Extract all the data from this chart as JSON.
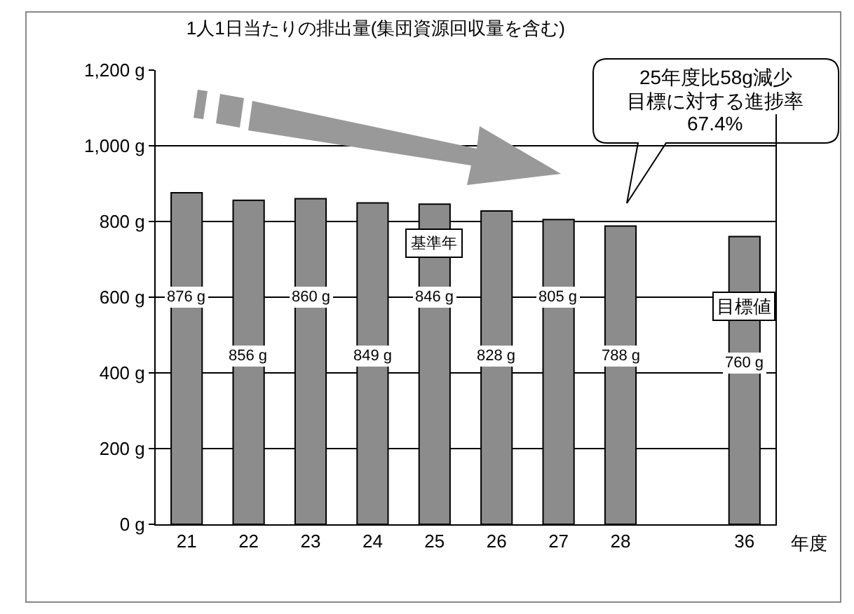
{
  "chart_data": {
    "type": "bar",
    "title": "1人1日当たりの排出量(集団資源回収量を含む)",
    "xlabel": "年度",
    "categories": [
      "21",
      "22",
      "23",
      "24",
      "25",
      "26",
      "27",
      "28",
      null,
      "36"
    ],
    "values": [
      876,
      856,
      860,
      849,
      846,
      828,
      805,
      788,
      null,
      760
    ],
    "value_labels": [
      "876 g",
      "856 g",
      "860 g",
      "849 g",
      "846 g",
      "828 g",
      "805 g",
      "788 g",
      null,
      "760 g"
    ],
    "color": "#8c8c8c",
    "ylim": [
      0,
      1200
    ],
    "yticks": [
      {
        "value": 0,
        "label": "0 g"
      },
      {
        "value": 200,
        "label": "200 g"
      },
      {
        "value": 400,
        "label": "400 g"
      },
      {
        "value": 600,
        "label": "600 g"
      },
      {
        "value": 800,
        "label": "800 g"
      },
      {
        "value": 1000,
        "label": "1,000 g"
      },
      {
        "value": 1200,
        "label": "1,200 g"
      }
    ],
    "grid": "y",
    "annotations": [
      "25年度比58g減少",
      "目標に対する進捗率",
      "67.4%",
      "基準年",
      "目標値"
    ]
  }
}
